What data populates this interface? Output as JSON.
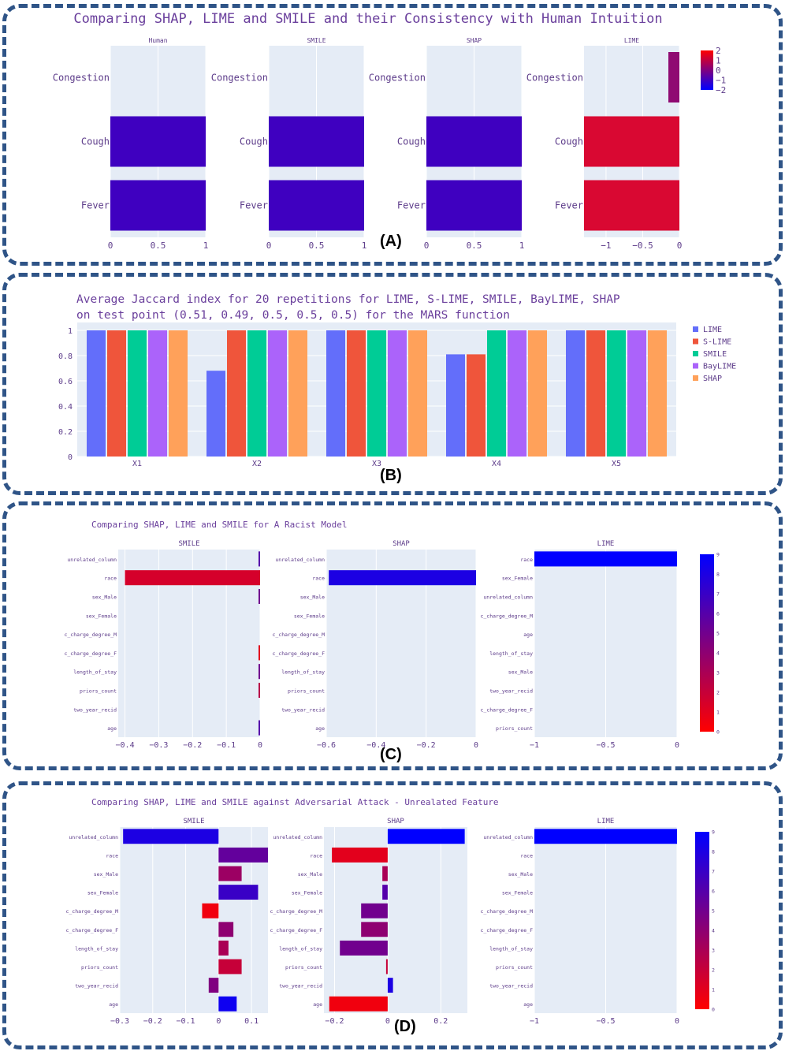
{
  "panel_labels": [
    "(A)",
    "(B)",
    "(C)",
    "(D)"
  ],
  "colors": {
    "frame": "#2f5487",
    "plot_bg": "#e5ecf6",
    "text": "#5d3c8a",
    "scale_low": "#ff0000",
    "scale_high": "#0000ff"
  },
  "chart_data": [
    {
      "id": "A",
      "type": "bar",
      "orientation": "horizontal",
      "title": "Comparing SHAP, LIME and SMILE and their Consistency with Human Intuition",
      "categories": [
        "Congestion",
        "Cough",
        "Fever"
      ],
      "subplots": [
        {
          "name": "Human",
          "values": [
            0,
            1,
            1
          ],
          "xlim": [
            0,
            1
          ],
          "ticks": [
            "0",
            "0.5",
            "1"
          ]
        },
        {
          "name": "SMILE",
          "values": [
            0,
            1,
            1
          ],
          "xlim": [
            0,
            1
          ],
          "ticks": [
            "0",
            "0.5",
            "1"
          ]
        },
        {
          "name": "SHAP",
          "values": [
            0,
            1,
            1
          ],
          "xlim": [
            0,
            1
          ],
          "ticks": [
            "0",
            "0.5",
            "1"
          ]
        },
        {
          "name": "LIME",
          "values": [
            -0.15,
            -1.3,
            -1.3
          ],
          "xlim": [
            -1.3,
            0
          ],
          "ticks": [
            "−1",
            "−0.5",
            "0"
          ]
        }
      ],
      "colorscale": {
        "min": -2,
        "max": 2,
        "ticks": [
          "2",
          "1",
          "0",
          "−1",
          "−2"
        ],
        "colors": [
          "#0000ff",
          "#ff0000"
        ]
      }
    },
    {
      "id": "B",
      "type": "bar",
      "title": "Average Jaccard index for 20 repetitions for LIME, S-LIME, SMILE, BayLIME, SHAP",
      "subtitle": "on test point (0.51, 0.49, 0.5, 0.5, 0.5) for the MARS function",
      "categories": [
        "X1",
        "X2",
        "X3",
        "X4",
        "X5"
      ],
      "ylim": [
        0,
        1
      ],
      "yticks": [
        "0",
        "0.2",
        "0.4",
        "0.6",
        "0.8",
        "1"
      ],
      "legend_position": "right",
      "series": [
        {
          "name": "LIME",
          "color": "#636efa",
          "values": [
            1,
            0.68,
            1,
            0.81,
            1
          ]
        },
        {
          "name": "S-LIME",
          "color": "#ef553b",
          "values": [
            1,
            1,
            1,
            0.81,
            1
          ]
        },
        {
          "name": "SMILE",
          "color": "#00cc96",
          "values": [
            1,
            1,
            1,
            1,
            1
          ]
        },
        {
          "name": "BayLIME",
          "color": "#ab63fa",
          "values": [
            1,
            1,
            1,
            1,
            1
          ]
        },
        {
          "name": "SHAP",
          "color": "#ffa15a",
          "values": [
            1,
            1,
            1,
            1,
            1
          ]
        }
      ]
    },
    {
      "id": "C",
      "type": "bar",
      "orientation": "horizontal",
      "title": "Comparing SHAP, LIME and SMILE for A Racist Model",
      "subplots": [
        {
          "name": "SMILE",
          "xlim": [
            -0.42,
            0
          ],
          "ticks": [
            [
              "−0.4",
              -0.4
            ],
            [
              "−0.3",
              -0.3
            ],
            [
              "−0.2",
              -0.2
            ],
            [
              "−0.1",
              -0.1
            ],
            [
              "0",
              0
            ]
          ],
          "categories": [
            "unrelated_column",
            "race",
            "sex_Male",
            "sex_Female",
            "c_charge_degree_M",
            "c_charge_degree_F",
            "length_of_stay",
            "priors_count",
            "two_year_recid",
            "age"
          ],
          "values": [
            -0.004,
            -0.4,
            -0.002,
            0,
            0,
            -0.003,
            -0.004,
            -0.002,
            0,
            -0.002
          ],
          "colors": [
            6,
            1.5,
            5,
            0,
            0,
            1,
            5,
            2.5,
            0,
            6
          ]
        },
        {
          "name": "SHAP",
          "xlim": [
            -0.6,
            0
          ],
          "ticks": [
            [
              "−0.6",
              -0.6
            ],
            [
              "−0.4",
              -0.4
            ],
            [
              "−0.2",
              -0.2
            ],
            [
              "0",
              0
            ]
          ],
          "categories": [
            "unrelated_column",
            "race",
            "sex_Male",
            "sex_Female",
            "c_charge_degree_M",
            "c_charge_degree_F",
            "length_of_stay",
            "priors_count",
            "two_year_recid",
            "age"
          ],
          "values": [
            0,
            -0.59,
            0,
            0,
            0,
            0,
            0,
            0,
            0,
            0
          ],
          "colors": [
            0,
            8,
            0,
            0,
            0,
            0,
            0,
            0,
            0,
            0
          ]
        },
        {
          "name": "LIME",
          "xlim": [
            -1,
            0
          ],
          "ticks": [
            [
              "−1",
              -1
            ],
            [
              "−0.5",
              -0.5
            ],
            [
              "0",
              0
            ]
          ],
          "categories": [
            "race",
            "sex_Female",
            "unrelated_column",
            "c_charge_degree_M",
            "age",
            "length_of_stay",
            "sex_Male",
            "two_year_recid",
            "c_charge_degree_F",
            "priors_count"
          ],
          "values": [
            -1,
            0,
            0,
            0,
            0,
            0,
            0,
            0,
            0,
            0
          ],
          "colors": [
            9,
            0,
            0,
            0,
            0,
            0,
            0,
            0,
            0,
            0
          ]
        }
      ],
      "colorscale": {
        "min": 0,
        "max": 9,
        "ticks": [
          "9",
          "8",
          "7",
          "6",
          "5",
          "4",
          "3",
          "2",
          "1",
          "0"
        ],
        "colors": [
          "#ff0000",
          "#0000ff"
        ]
      }
    },
    {
      "id": "D",
      "type": "bar",
      "orientation": "horizontal",
      "title": "Comparing SHAP, LIME and SMILE against Adversarial Attack - Unrealated Feature",
      "subplots": [
        {
          "name": "SMILE",
          "xlim": [
            -0.3,
            0.15
          ],
          "ticks": [
            [
              "−0.3",
              -0.3
            ],
            [
              "−0.2",
              -0.2
            ],
            [
              "−0.1",
              -0.1
            ],
            [
              "0",
              0
            ],
            [
              "0.1",
              0.1
            ]
          ],
          "categories": [
            "unrelated_column",
            "race",
            "sex_Male",
            "sex_Female",
            "c_charge_degree_M",
            "c_charge_degree_F",
            "length_of_stay",
            "priors_count",
            "two_year_recid",
            "age"
          ],
          "values": [
            -0.29,
            0.15,
            0.07,
            0.12,
            -0.05,
            0.045,
            0.03,
            0.07,
            -0.03,
            0.055
          ],
          "colors": [
            8,
            5.5,
            3.5,
            7,
            0.5,
            4,
            3,
            2,
            4.5,
            8.5
          ]
        },
        {
          "name": "SHAP",
          "xlim": [
            -0.24,
            0.3
          ],
          "ticks": [
            [
              "−0.2",
              -0.2
            ],
            [
              "0",
              0
            ],
            [
              "0.2",
              0.2
            ]
          ],
          "categories": [
            "unrelated_column",
            "race",
            "sex_Male",
            "sex_Female",
            "c_charge_degree_M",
            "c_charge_degree_F",
            "length_of_stay",
            "priors_count",
            "two_year_recid",
            "age"
          ],
          "values": [
            0.29,
            -0.21,
            -0.02,
            -0.02,
            -0.1,
            -0.1,
            -0.18,
            -0.002,
            0.02,
            -0.22
          ],
          "colors": [
            9,
            1,
            3,
            6,
            5,
            4,
            5,
            2,
            8,
            0.5
          ]
        },
        {
          "name": "LIME",
          "xlim": [
            -1,
            0
          ],
          "ticks": [
            [
              "−1",
              -1
            ],
            [
              "−0.5",
              -0.5
            ],
            [
              "0",
              0
            ]
          ],
          "categories": [
            "unrelated_column",
            "race",
            "sex_Male",
            "sex_Female",
            "c_charge_degree_M",
            "c_charge_degree_F",
            "length_of_stay",
            "priors_count",
            "two_year_recid",
            "age"
          ],
          "values": [
            -1,
            0,
            0,
            0,
            0,
            0,
            0,
            0,
            0,
            0
          ],
          "colors": [
            9,
            0,
            0,
            0,
            0,
            0,
            0,
            0,
            0,
            0
          ]
        }
      ],
      "colorscale": {
        "min": 0,
        "max": 9,
        "ticks": [
          "9",
          "8",
          "7",
          "6",
          "5",
          "4",
          "3",
          "2",
          "1",
          "0"
        ],
        "colors": [
          "#ff0000",
          "#0000ff"
        ]
      }
    }
  ]
}
